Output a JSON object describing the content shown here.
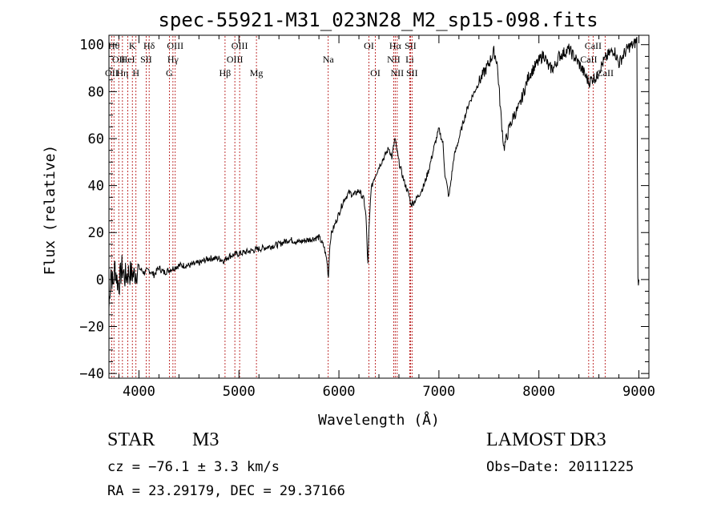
{
  "chart_data": {
    "type": "line",
    "title": "spec-55921-M31_023N28_M2_sp15-098.fits",
    "xlabel": "Wavelength (Å)",
    "ylabel": "Flux (relative)",
    "xlim": [
      3700,
      9100
    ],
    "ylim": [
      -42,
      104
    ],
    "x_ticks": [
      4000,
      5000,
      6000,
      7000,
      8000,
      9000
    ],
    "y_ticks": [
      -40,
      -20,
      0,
      20,
      40,
      60,
      80,
      100
    ],
    "x_tick_labels": [
      "4000",
      "5000",
      "6000",
      "7000",
      "8000",
      "9000"
    ],
    "y_tick_labels": [
      "−40",
      "−20",
      "0",
      "20",
      "40",
      "60",
      "80",
      "100"
    ],
    "grid": false,
    "series": [
      {
        "name": "spectrum",
        "x": [
          3700,
          3720,
          3740,
          3760,
          3780,
          3800,
          3830,
          3860,
          3900,
          3950,
          4000,
          4050,
          4100,
          4150,
          4200,
          4250,
          4300,
          4400,
          4500,
          4600,
          4700,
          4800,
          4850,
          4900,
          5000,
          5100,
          5200,
          5300,
          5400,
          5500,
          5600,
          5700,
          5800,
          5850,
          5880,
          5895,
          5905,
          5920,
          6000,
          6050,
          6100,
          6150,
          6200,
          6250,
          6270,
          6290,
          6300,
          6320,
          6350,
          6400,
          6450,
          6500,
          6530,
          6560,
          6580,
          6600,
          6650,
          6700,
          6720,
          6750,
          6800,
          6850,
          6900,
          6950,
          7000,
          7040,
          7060,
          7100,
          7150,
          7200,
          7250,
          7300,
          7400,
          7500,
          7550,
          7580,
          7600,
          7620,
          7650,
          7700,
          7750,
          7800,
          7850,
          7900,
          7950,
          8000,
          8050,
          8100,
          8150,
          8200,
          8300,
          8400,
          8450,
          8500,
          8520,
          8550,
          8580,
          8600,
          8650,
          8700,
          8750,
          8800,
          8850,
          8900,
          8950,
          8980,
          8990,
          9000
        ],
        "y": [
          -12,
          5,
          -3,
          6,
          0,
          -2,
          5,
          1,
          3,
          2,
          5,
          3,
          4,
          2,
          5,
          3,
          4,
          6,
          6,
          7,
          9,
          9,
          8,
          10,
          11,
          12,
          13,
          14,
          15,
          17,
          16,
          17,
          18,
          14,
          8,
          1,
          12,
          19,
          28,
          34,
          37,
          36,
          38,
          34,
          27,
          6,
          20,
          38,
          43,
          48,
          52,
          56,
          52,
          60,
          55,
          50,
          42,
          36,
          32,
          33,
          36,
          40,
          47,
          56,
          64,
          58,
          45,
          35,
          52,
          60,
          68,
          75,
          84,
          92,
          97,
          93,
          82,
          70,
          56,
          64,
          70,
          73,
          80,
          87,
          90,
          93,
          96,
          90,
          90,
          95,
          98,
          92,
          88,
          84,
          85,
          86,
          86,
          89,
          93,
          96,
          98,
          92,
          96,
          99,
          100,
          102,
          0,
          0
        ]
      }
    ],
    "line_markers": [
      {
        "wavelength": 3750,
        "label": "Hθ",
        "row": 1
      },
      {
        "wavelength": 3727,
        "label": "OII",
        "row": 3
      },
      {
        "wavelength": 3798,
        "label": "OII",
        "row": 2
      },
      {
        "wavelength": 3835,
        "label": "Hη",
        "row": 3
      },
      {
        "wavelength": 3889,
        "label": "HeI",
        "row": 2
      },
      {
        "wavelength": 3934,
        "label": "K",
        "row": 1
      },
      {
        "wavelength": 3970,
        "label": "H",
        "row": 3
      },
      {
        "wavelength": 4072,
        "label": "SII",
        "row": 2
      },
      {
        "wavelength": 4102,
        "label": "Hδ",
        "row": 1
      },
      {
        "wavelength": 4304,
        "label": "G",
        "row": 3
      },
      {
        "wavelength": 4340,
        "label": "Hγ",
        "row": 2
      },
      {
        "wavelength": 4363,
        "label": "OIII",
        "row": 1
      },
      {
        "wavelength": 4861,
        "label": "Hβ",
        "row": 3
      },
      {
        "wavelength": 4959,
        "label": "OIII",
        "row": 2
      },
      {
        "wavelength": 5007,
        "label": "OIII",
        "row": 1
      },
      {
        "wavelength": 5175,
        "label": "Mg",
        "row": 3
      },
      {
        "wavelength": 5893,
        "label": "Na",
        "row": 2
      },
      {
        "wavelength": 6300,
        "label": "OI",
        "row": 1
      },
      {
        "wavelength": 6364,
        "label": "OI",
        "row": 3
      },
      {
        "wavelength": 6548,
        "label": "NII",
        "row": 2
      },
      {
        "wavelength": 6563,
        "label": "Hα",
        "row": 1
      },
      {
        "wavelength": 6583,
        "label": "NII",
        "row": 3
      },
      {
        "wavelength": 6708,
        "label": "Li",
        "row": 2
      },
      {
        "wavelength": 6716,
        "label": "SII",
        "row": 1
      },
      {
        "wavelength": 6731,
        "label": "SII",
        "row": 3
      },
      {
        "wavelength": 8498,
        "label": "CaII",
        "row": 2
      },
      {
        "wavelength": 8542,
        "label": "CaII",
        "row": 1
      },
      {
        "wavelength": 8662,
        "label": "CaII",
        "row": 3
      }
    ]
  },
  "info": {
    "object_class": "STAR",
    "subclass": "M3",
    "survey": "LAMOST DR3",
    "cz": "cz = −76.1 ± 3.3 km/s",
    "obs_date": "Obs−Date: 20111225",
    "coords": "RA =  23.29179, DEC =  29.37166"
  }
}
